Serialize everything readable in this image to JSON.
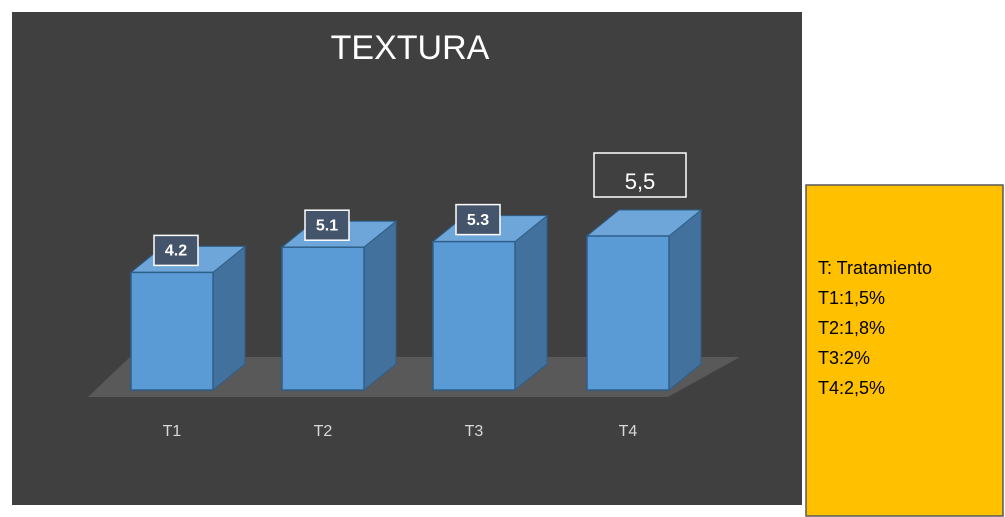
{
  "chart_data": {
    "type": "bar3d",
    "title": "TEXTURA",
    "categories": [
      "T1",
      "T2",
      "T3",
      "T4"
    ],
    "values": [
      4.2,
      5.1,
      5.3,
      5.5
    ],
    "value_labels": [
      "4.2",
      "5.1",
      "5.3",
      "5,5"
    ],
    "color": "#5b9bd5",
    "annotations": [
      "T: Tratamiento",
      "T1:1,5%",
      "T2:1,8%",
      "T3:2%",
      "T4:2,5%"
    ]
  }
}
